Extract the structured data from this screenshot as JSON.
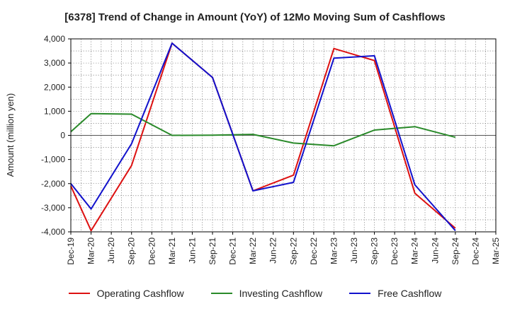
{
  "chart_data": {
    "type": "line",
    "title": "[6378]  Trend of Change in Amount (YoY) of 12Mo Moving Sum of Cashflows",
    "xlabel": "",
    "ylabel": "Amount (million yen)",
    "ylim": [
      -4000,
      4000
    ],
    "yticks": [
      4000,
      3000,
      2000,
      1000,
      0,
      -1000,
      -2000,
      -3000,
      -4000
    ],
    "ytick_labels": [
      "4,000",
      "3,000",
      "2,000",
      "1,000",
      "0",
      "-1,000",
      "-2,000",
      "-3,000",
      "-4,000"
    ],
    "categories": [
      "Dec-19",
      "Mar-20",
      "Jun-20",
      "Sep-20",
      "Dec-20",
      "Mar-21",
      "Jun-21",
      "Sep-21",
      "Dec-21",
      "Mar-22",
      "Jun-22",
      "Sep-22",
      "Dec-22",
      "Mar-23",
      "Jun-23",
      "Sep-23",
      "Dec-23",
      "Mar-24",
      "Jun-24",
      "Sep-24",
      "Dec-24",
      "Mar-25"
    ],
    "grid": true,
    "legend_position": "bottom",
    "series": [
      {
        "name": "Operating Cashflow",
        "color": "#dd1111",
        "values": [
          -2100,
          -3950,
          null,
          -1250,
          null,
          3820,
          null,
          2400,
          null,
          -2300,
          null,
          -1650,
          null,
          3600,
          null,
          3100,
          null,
          -2400,
          null,
          -3850,
          null,
          null
        ]
      },
      {
        "name": "Investing Cashflow",
        "color": "#2a8a2a",
        "values": [
          150,
          900,
          null,
          880,
          null,
          0,
          null,
          10,
          null,
          40,
          null,
          -320,
          null,
          -430,
          null,
          220,
          null,
          360,
          null,
          -80,
          null,
          null
        ]
      },
      {
        "name": "Free Cashflow",
        "color": "#1111cc",
        "values": [
          -2000,
          -3050,
          null,
          -350,
          null,
          3820,
          null,
          2400,
          null,
          -2300,
          null,
          -1950,
          null,
          3200,
          null,
          3300,
          null,
          -2050,
          null,
          -3950,
          null,
          null
        ]
      }
    ]
  }
}
